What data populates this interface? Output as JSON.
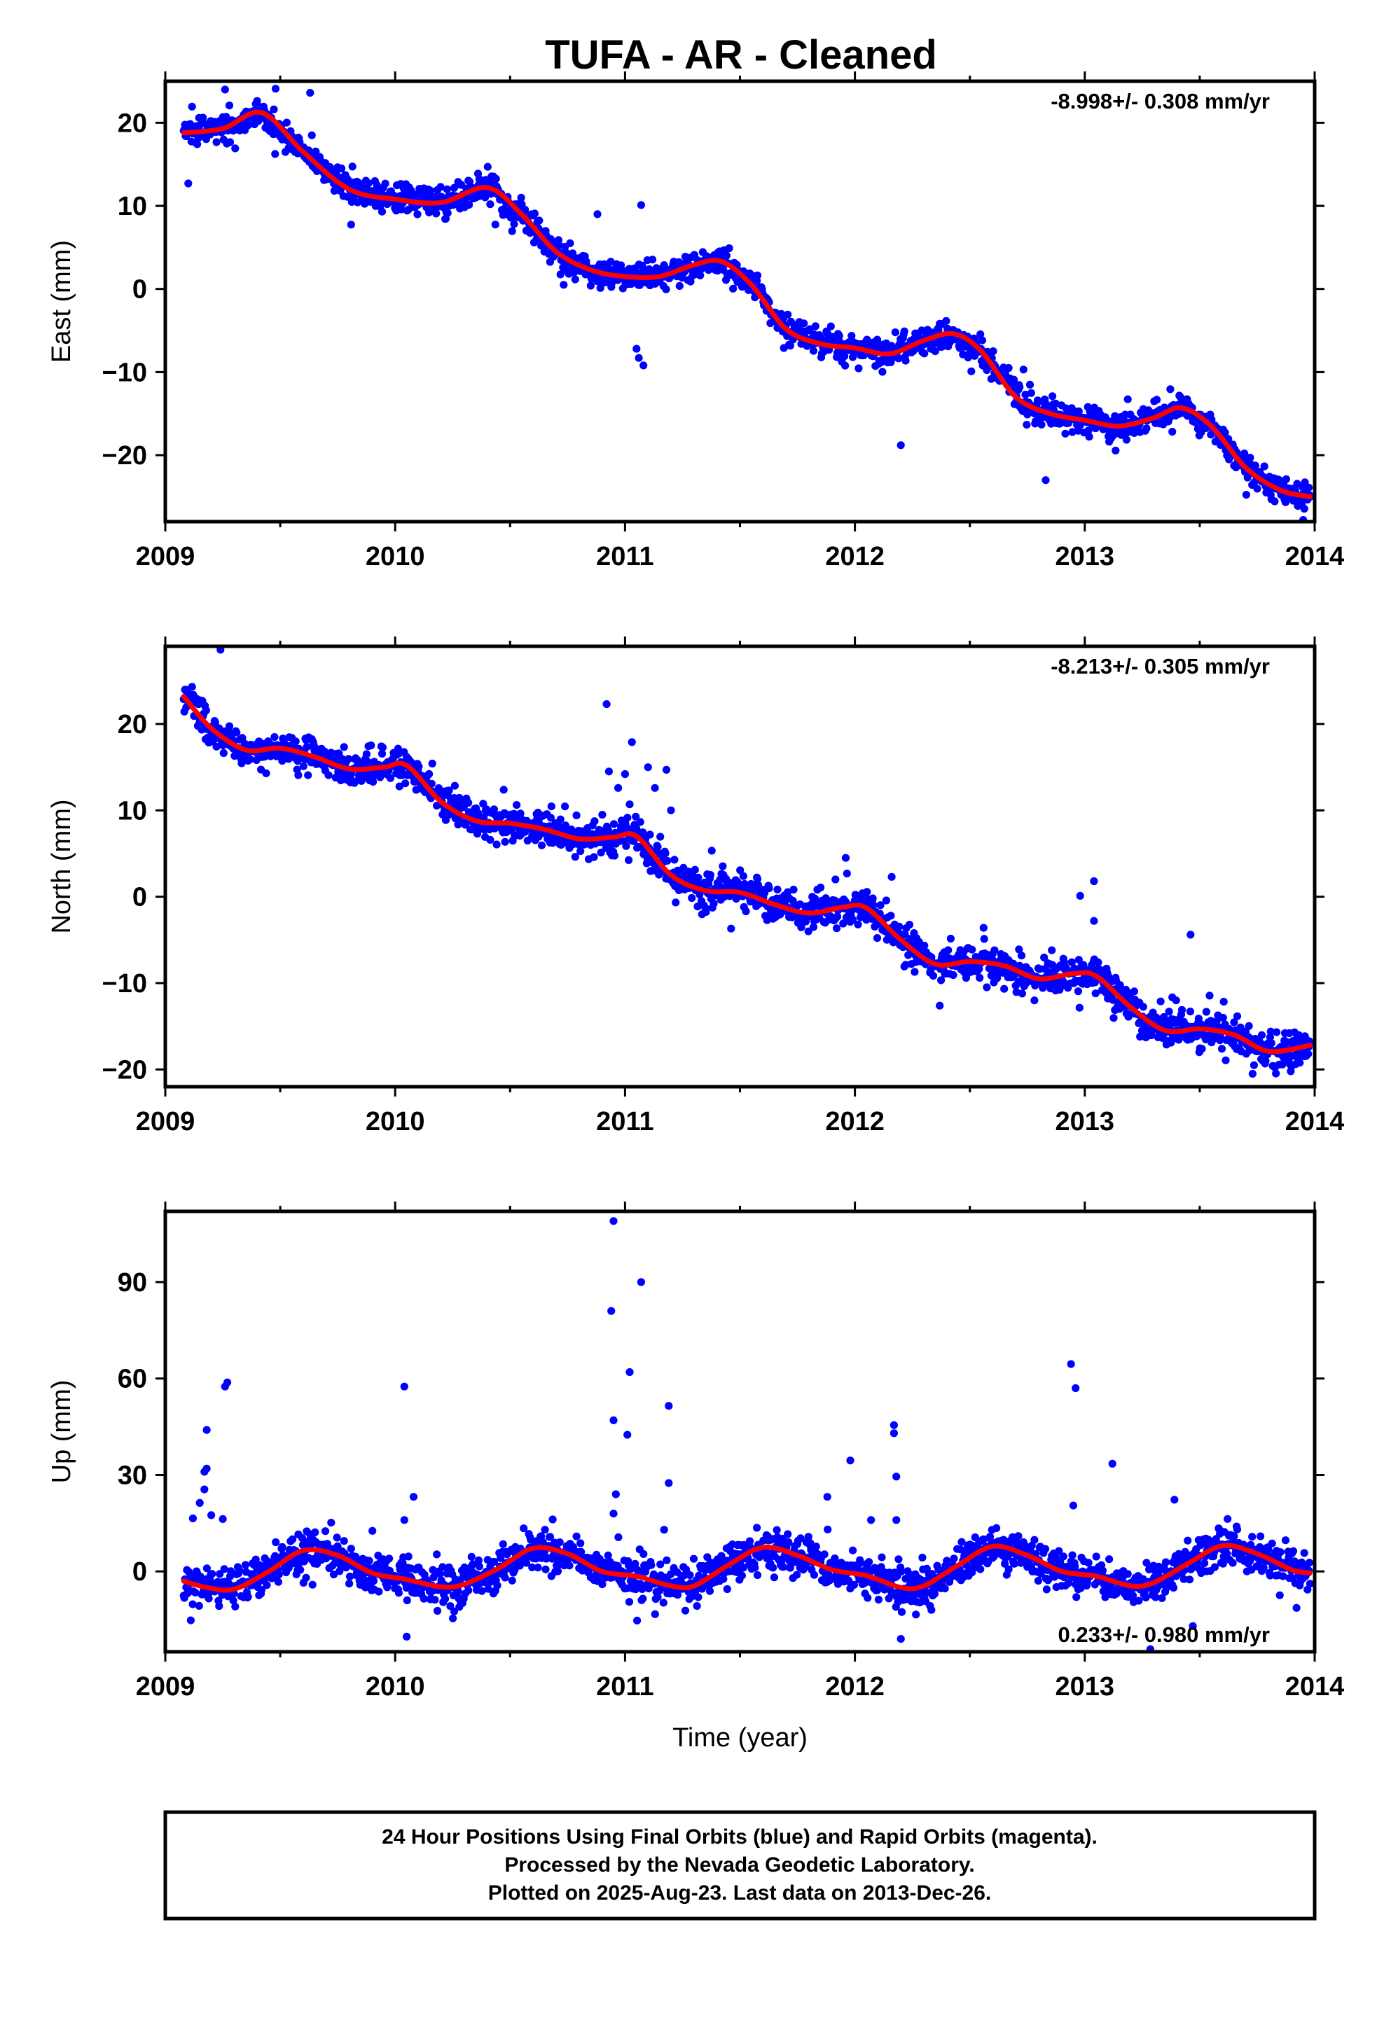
{
  "title": "TUFA  - AR - Cleaned",
  "footer": {
    "lines": [
      "24 Hour Positions Using Final Orbits (blue) and Rapid Orbits (magenta).",
      "Processed by the Nevada Geodetic Laboratory.",
      "Plotted on 2025-Aug-23. Last data on 2013-Dec-26."
    ]
  },
  "colors": {
    "points": "#0000ff",
    "fit": "#ff0000",
    "frame": "#000000"
  },
  "chart_data": [
    {
      "type": "scatter",
      "name": "east",
      "xlabel": "",
      "ylabel": "East (mm)",
      "rate_label": "-8.998+/- 0.308 mm/yr",
      "rate_position": "top-right",
      "xlim": [
        2009.0,
        2014.0
      ],
      "ylim": [
        -28,
        25
      ],
      "x_ticks": [
        2009,
        2010,
        2011,
        2012,
        2013,
        2014
      ],
      "y_ticks": [
        20,
        10,
        0,
        -10,
        -20
      ],
      "y_tick_labels": [
        "20",
        "10",
        "0",
        "−10",
        "−20"
      ],
      "x_range": [
        2009.08,
        2013.98
      ],
      "point_count": 1750,
      "trend": {
        "rate": -8.998,
        "y_at_start": 18.0,
        "annual_amplitude": 2.5,
        "annual_peak": 0.47,
        "noise_sd": 0.8
      },
      "outliers": [
        {
          "x": 2009.1,
          "y": 12.7
        },
        {
          "x": 2009.26,
          "y": 24.0
        },
        {
          "x": 2009.48,
          "y": 24.1
        },
        {
          "x": 2009.63,
          "y": 23.6
        },
        {
          "x": 2010.88,
          "y": 9.0
        },
        {
          "x": 2011.07,
          "y": 10.1
        },
        {
          "x": 2011.05,
          "y": -7.2
        },
        {
          "x": 2011.08,
          "y": -9.2
        },
        {
          "x": 2011.06,
          "y": -8.3
        },
        {
          "x": 2012.2,
          "y": -18.8
        },
        {
          "x": 2012.83,
          "y": -23.0
        },
        {
          "x": 2013.95,
          "y": -27.8
        }
      ],
      "fit": {
        "x": [
          2009.08,
          2009.25,
          2009.42,
          2009.6,
          2009.8,
          2010.0,
          2010.2,
          2010.4,
          2010.55,
          2010.7,
          2010.85,
          2011.0,
          2011.15,
          2011.3,
          2011.42,
          2011.55,
          2011.7,
          2011.85,
          2012.0,
          2012.15,
          2012.3,
          2012.43,
          2012.55,
          2012.7,
          2012.85,
          2013.0,
          2013.15,
          2013.3,
          2013.42,
          2013.55,
          2013.7,
          2013.85,
          2013.98
        ],
        "y": [
          18.8,
          19.3,
          21.2,
          16.5,
          12.0,
          10.8,
          10.4,
          12.2,
          9.0,
          4.5,
          2.3,
          1.5,
          1.5,
          2.9,
          3.3,
          0.5,
          -4.8,
          -6.6,
          -7.1,
          -7.8,
          -6.2,
          -5.4,
          -7.5,
          -13.0,
          -15.0,
          -15.8,
          -16.5,
          -15.5,
          -14.3,
          -16.5,
          -21.5,
          -24.2,
          -25.0
        ]
      }
    },
    {
      "type": "scatter",
      "name": "north",
      "xlabel": "",
      "ylabel": "North (mm)",
      "rate_label": "-8.213+/- 0.305 mm/yr",
      "rate_position": "top-right",
      "xlim": [
        2009.0,
        2014.0
      ],
      "ylim": [
        -22,
        29
      ],
      "x_ticks": [
        2009,
        2010,
        2011,
        2012,
        2013,
        2014
      ],
      "y_ticks": [
        20,
        10,
        0,
        -10,
        -20
      ],
      "y_tick_labels": [
        "20",
        "10",
        "0",
        "−10",
        "−20"
      ],
      "x_range": [
        2009.08,
        2013.98
      ],
      "point_count": 1750,
      "trend": {
        "rate": -8.213,
        "y_at_start": 21.5,
        "annual_amplitude": 1.5,
        "annual_peak": 0.0,
        "noise_sd": 1.0
      },
      "outliers": [
        {
          "x": 2009.24,
          "y": 28.6
        },
        {
          "x": 2010.92,
          "y": 22.3
        },
        {
          "x": 2010.93,
          "y": 14.5
        },
        {
          "x": 2010.97,
          "y": 12.6
        },
        {
          "x": 2011.0,
          "y": 14.2
        },
        {
          "x": 2011.02,
          "y": 10.7
        },
        {
          "x": 2011.03,
          "y": 17.9
        },
        {
          "x": 2011.1,
          "y": 15.0
        },
        {
          "x": 2011.13,
          "y": 12.6
        },
        {
          "x": 2011.18,
          "y": 14.7
        },
        {
          "x": 2011.2,
          "y": 10.0
        },
        {
          "x": 2011.96,
          "y": 4.5
        },
        {
          "x": 2012.16,
          "y": 2.3
        },
        {
          "x": 2012.98,
          "y": 0.1
        },
        {
          "x": 2013.04,
          "y": 1.8
        },
        {
          "x": 2013.04,
          "y": -2.8
        },
        {
          "x": 2013.46,
          "y": -4.4
        },
        {
          "x": 2013.73,
          "y": -20.5
        }
      ],
      "fit": {
        "x": [
          2009.08,
          2009.2,
          2009.35,
          2009.5,
          2009.65,
          2009.8,
          2009.95,
          2010.05,
          2010.2,
          2010.35,
          2010.5,
          2010.65,
          2010.8,
          2010.95,
          2011.05,
          2011.2,
          2011.35,
          2011.5,
          2011.65,
          2011.8,
          2011.95,
          2012.05,
          2012.2,
          2012.35,
          2012.5,
          2012.65,
          2012.8,
          2012.95,
          2013.05,
          2013.2,
          2013.35,
          2013.5,
          2013.65,
          2013.8,
          2013.98
        ],
        "y": [
          23.2,
          19.5,
          17.0,
          17.2,
          16.2,
          14.8,
          15.0,
          15.2,
          11.0,
          8.8,
          8.5,
          7.8,
          6.7,
          6.9,
          7.0,
          2.5,
          0.7,
          0.5,
          -0.9,
          -1.9,
          -1.2,
          -1.3,
          -5.0,
          -7.8,
          -7.5,
          -8.0,
          -9.5,
          -8.9,
          -9.2,
          -12.8,
          -15.5,
          -15.3,
          -16.0,
          -17.9,
          -17.2
        ]
      }
    },
    {
      "type": "scatter",
      "name": "up",
      "xlabel": "Time (year)",
      "ylabel": "Up (mm)",
      "rate_label": "0.233+/- 0.980 mm/yr",
      "rate_position": "bottom-right",
      "xlim": [
        2009.0,
        2014.0
      ],
      "ylim": [
        -25,
        112
      ],
      "x_ticks": [
        2009,
        2010,
        2011,
        2012,
        2013,
        2014
      ],
      "y_ticks": [
        90,
        60,
        30,
        0
      ],
      "y_tick_labels": [
        "90",
        "60",
        "30",
        "0"
      ],
      "x_range": [
        2009.08,
        2013.98
      ],
      "point_count": 1750,
      "trend": {
        "rate": 0.233,
        "y_at_start": 0.5,
        "annual_amplitude": 6.0,
        "annual_peak": 0.61,
        "noise_sd": 3.0
      },
      "outliers": [
        {
          "x": 2009.12,
          "y": 16.5
        },
        {
          "x": 2009.15,
          "y": 21.3
        },
        {
          "x": 2009.17,
          "y": 25.5
        },
        {
          "x": 2009.17,
          "y": 31.0
        },
        {
          "x": 2009.18,
          "y": 32.0
        },
        {
          "x": 2009.18,
          "y": 44.0
        },
        {
          "x": 2009.2,
          "y": 17.5
        },
        {
          "x": 2009.25,
          "y": 16.3
        },
        {
          "x": 2009.26,
          "y": 57.5
        },
        {
          "x": 2009.27,
          "y": 58.8
        },
        {
          "x": 2010.04,
          "y": 57.5
        },
        {
          "x": 2010.04,
          "y": 16.0
        },
        {
          "x": 2010.08,
          "y": 23.2
        },
        {
          "x": 2010.05,
          "y": -20.3
        },
        {
          "x": 2010.95,
          "y": 109.0
        },
        {
          "x": 2010.94,
          "y": 81.0
        },
        {
          "x": 2010.95,
          "y": 47.0
        },
        {
          "x": 2010.96,
          "y": 24.0
        },
        {
          "x": 2010.95,
          "y": 18.0
        },
        {
          "x": 2011.02,
          "y": 62.0
        },
        {
          "x": 2011.01,
          "y": 42.5
        },
        {
          "x": 2011.07,
          "y": 90.0
        },
        {
          "x": 2011.19,
          "y": 51.5
        },
        {
          "x": 2011.19,
          "y": 27.5
        },
        {
          "x": 2011.88,
          "y": 23.2
        },
        {
          "x": 2011.98,
          "y": 34.5
        },
        {
          "x": 2012.07,
          "y": 16.0
        },
        {
          "x": 2012.17,
          "y": 45.5
        },
        {
          "x": 2012.17,
          "y": 43.0
        },
        {
          "x": 2012.18,
          "y": 29.5
        },
        {
          "x": 2012.18,
          "y": 16.0
        },
        {
          "x": 2012.2,
          "y": -21.0
        },
        {
          "x": 2012.94,
          "y": 64.5
        },
        {
          "x": 2012.96,
          "y": 57.0
        },
        {
          "x": 2012.95,
          "y": 20.5
        },
        {
          "x": 2013.12,
          "y": 33.5
        },
        {
          "x": 2013.39,
          "y": 22.3
        },
        {
          "x": 2013.47,
          "y": -17.0
        }
      ],
      "fit": {
        "x": [
          2009.08,
          2009.18,
          2009.3,
          2009.45,
          2009.6,
          2009.75,
          2009.9,
          2010.05,
          2010.2,
          2010.3,
          2010.45,
          2010.6,
          2010.75,
          2010.9,
          2011.05,
          2011.2,
          2011.3,
          2011.45,
          2011.6,
          2011.75,
          2011.9,
          2012.05,
          2012.2,
          2012.3,
          2012.45,
          2012.6,
          2012.75,
          2012.9,
          2013.05,
          2013.2,
          2013.3,
          2013.45,
          2013.6,
          2013.75,
          2013.9,
          2013.98
        ],
        "y": [
          -3.0,
          -5.0,
          -5.5,
          0.0,
          6.5,
          5.0,
          -0.5,
          -2.5,
          -4.8,
          -4.0,
          1.0,
          7.2,
          5.5,
          0.0,
          -1.5,
          -4.5,
          -4.5,
          2.0,
          7.5,
          5.0,
          0.5,
          -1.3,
          -5.0,
          -4.5,
          2.0,
          7.8,
          5.0,
          0.0,
          -1.5,
          -4.5,
          -3.5,
          2.5,
          8.0,
          5.5,
          0.5,
          -0.5
        ]
      }
    }
  ]
}
